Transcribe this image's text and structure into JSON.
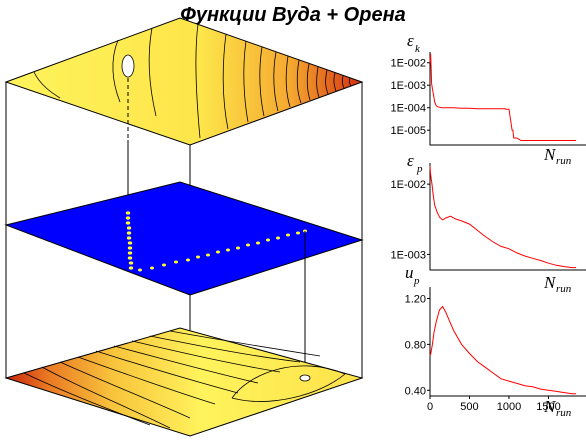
{
  "title": "Функции Вуда + Орена",
  "colors": {
    "surface_light": "#fdf25a",
    "surface_dark": "#c8200c",
    "plane": "#0000ff",
    "trail": "#ffff33",
    "curve": "#ff0000"
  },
  "chart_data": [
    {
      "type": "line",
      "panel": "top",
      "ylabel_symbol": "ε",
      "ylabel_subscript": "k",
      "xlabel_symbol": "N",
      "xlabel_subscript": "run",
      "y_scale": "log",
      "yticks": [
        "1E-002",
        "1E-003",
        "1E-004",
        "1E-005"
      ],
      "ylim": [
        2.2e-06,
        0.03
      ],
      "xlim": [
        0,
        1950
      ],
      "x": [
        0,
        8,
        15,
        20,
        30,
        45,
        60,
        80,
        100,
        150,
        200,
        300,
        400,
        500,
        600,
        700,
        800,
        900,
        950,
        960,
        1000,
        1040,
        1050,
        1060,
        1100,
        1150,
        1300,
        1500,
        1700,
        1850
      ],
      "values": [
        0.01,
        0.025,
        0.005,
        0.0012,
        0.0007,
        0.00035,
        0.00018,
        0.00012,
        0.00011,
        0.0001,
        0.0001,
        0.0001,
        9.5e-05,
        9.5e-05,
        9e-05,
        9e-05,
        9e-05,
        9e-05,
        9e-05,
        8.5e-05,
        8.5e-05,
        1e-05,
        1e-05,
        4.5e-06,
        4.5e-06,
        3.5e-06,
        3.5e-06,
        3.5e-06,
        3.5e-06,
        3.5e-06
      ]
    },
    {
      "type": "line",
      "panel": "middle",
      "ylabel_symbol": "ε",
      "ylabel_subscript": "p",
      "xlabel_symbol": "N",
      "xlabel_subscript": "run",
      "y_scale": "log",
      "yticks": [
        "1E-002",
        "1E-003"
      ],
      "ylim": [
        0.0006,
        0.02
      ],
      "xlim": [
        0,
        1950
      ],
      "x": [
        0,
        8,
        15,
        25,
        40,
        60,
        90,
        120,
        160,
        200,
        260,
        320,
        400,
        500,
        600,
        700,
        800,
        900,
        1000,
        1100,
        1200,
        1300,
        1400,
        1500,
        1600,
        1700,
        1800,
        1850
      ],
      "values": [
        0.018,
        0.014,
        0.012,
        0.01,
        0.007,
        0.005,
        0.004,
        0.0034,
        0.0031,
        0.0033,
        0.0035,
        0.0032,
        0.003,
        0.0027,
        0.0022,
        0.0018,
        0.0015,
        0.0013,
        0.0012,
        0.00105,
        0.00095,
        0.00088,
        0.00082,
        0.00075,
        0.0007,
        0.00067,
        0.00065,
        0.00065
      ]
    },
    {
      "type": "line",
      "panel": "bottom",
      "ylabel_symbol": "u",
      "ylabel_subscript": "p",
      "xlabel_symbol": "N",
      "xlabel_subscript": "run",
      "y_scale": "linear",
      "yticks": [
        "1.20",
        "0.80",
        "0.40"
      ],
      "xticks": [
        "0",
        "500",
        "1000",
        "1500"
      ],
      "ylim": [
        0.35,
        1.3
      ],
      "xlim": [
        0,
        1950
      ],
      "x": [
        0,
        10,
        30,
        50,
        80,
        120,
        160,
        200,
        250,
        300,
        400,
        500,
        600,
        700,
        800,
        900,
        1000,
        1100,
        1200,
        1300,
        1400,
        1500,
        1600,
        1700,
        1800,
        1850
      ],
      "values": [
        0.7,
        0.72,
        0.8,
        0.9,
        1.0,
        1.1,
        1.13,
        1.08,
        1.0,
        0.92,
        0.8,
        0.72,
        0.65,
        0.6,
        0.55,
        0.5,
        0.48,
        0.46,
        0.44,
        0.43,
        0.41,
        0.4,
        0.39,
        0.38,
        0.37,
        0.37
      ]
    }
  ]
}
